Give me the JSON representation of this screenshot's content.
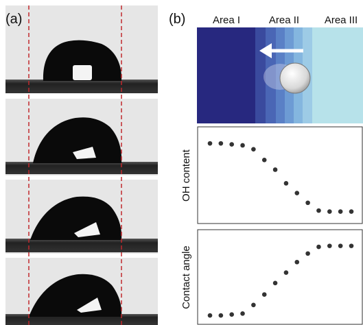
{
  "panel_a": {
    "label": "(a)"
  },
  "panel_b": {
    "label": "(b)",
    "areas": [
      "Area I",
      "Area II",
      "Area III"
    ],
    "plots": [
      {
        "ylabel": "OH content",
        "ylim": [
          0,
          100
        ],
        "values": [
          83,
          83,
          82,
          81,
          77,
          66,
          56,
          42,
          32,
          22,
          14,
          13,
          13,
          13
        ]
      },
      {
        "ylabel": "Contact angle",
        "ylim": [
          0,
          100
        ],
        "values": [
          10,
          10,
          11,
          12,
          21,
          32,
          44,
          55,
          66,
          75,
          82,
          83,
          83,
          83
        ]
      }
    ]
  }
}
